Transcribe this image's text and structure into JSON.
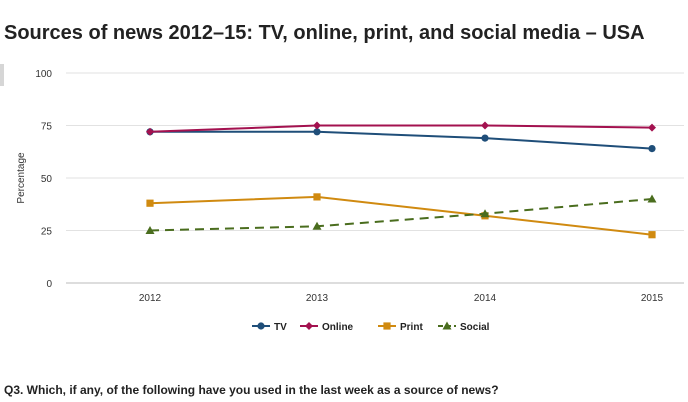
{
  "title": "Sources of news 2012–15: TV, online, print, and social media – USA",
  "footnote": "Q3. Which, if any, of the following have you used in the last week as a source of news?",
  "chart_data": {
    "type": "line",
    "title": "Sources of news 2012–15: TV, online, print, and social media – USA",
    "ylabel": "Percentage",
    "xlabel": "",
    "categories": [
      "2012",
      "2013",
      "2014",
      "2015"
    ],
    "ylim": [
      0,
      100
    ],
    "yticks": [
      0,
      25,
      50,
      75,
      100
    ],
    "grid": "horizontal",
    "legend_position": "bottom",
    "series": [
      {
        "name": "TV",
        "values": [
          72,
          72,
          69,
          64
        ],
        "color": "#1f4e79",
        "marker": "circle",
        "dash": "solid"
      },
      {
        "name": "Online",
        "values": [
          72,
          75,
          75,
          74
        ],
        "color": "#a3114f",
        "marker": "diamond",
        "dash": "solid"
      },
      {
        "name": "Print",
        "values": [
          38,
          41,
          32,
          23
        ],
        "color": "#d08a10",
        "marker": "square",
        "dash": "solid"
      },
      {
        "name": "Social",
        "values": [
          25,
          27,
          33,
          40
        ],
        "color": "#4a6d1e",
        "marker": "triangle",
        "dash": "dashed"
      }
    ]
  }
}
